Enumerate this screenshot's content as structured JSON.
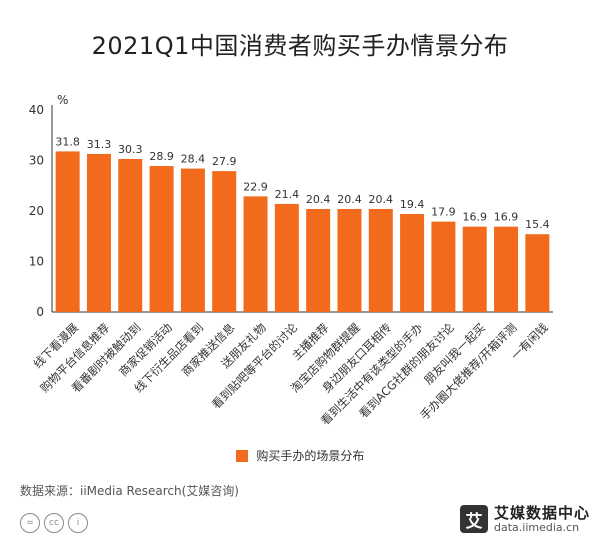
{
  "header": {
    "title": "2021Q1中国消费者购买手办情景分布"
  },
  "chart_data": {
    "type": "bar",
    "title": "2021Q1中国消费者购买手办情景分布",
    "ylabel": "%",
    "ylim": [
      0,
      40
    ],
    "yticks": [
      0,
      10,
      20,
      30,
      40
    ],
    "grid": false,
    "legend_position": "bottom",
    "categories": [
      "线下看漫展",
      "购物平台信息推荐",
      "看番剧时被触动到",
      "商家促销活动",
      "线下衍生品店看到",
      "商家推送信息",
      "送朋友礼物",
      "看到贴吧等平台的讨论",
      "主播推荐",
      "淘宝店购物群提醒",
      "身边朋友口耳相传",
      "看到生活中有该类型的手办",
      "看到ACG社群的朋友讨论",
      "朋友叫我一起买",
      "手办圈大佬推荐/开箱评测",
      "一有闲钱"
    ],
    "series": [
      {
        "name": "购买手办的场景分布",
        "values": [
          31.8,
          31.3,
          30.3,
          28.9,
          28.4,
          27.9,
          22.9,
          21.4,
          20.4,
          20.4,
          20.4,
          19.4,
          17.9,
          16.9,
          16.9,
          15.4
        ]
      }
    ]
  },
  "colors": {
    "bar": "#F26A1B",
    "axis": "#333333",
    "text": "#333333"
  },
  "source": "数据来源：iiMedia Research(艾媒咨询)",
  "license_icons": [
    "=",
    "cc",
    "i"
  ],
  "brand": {
    "name": "艾媒数据中心",
    "url": "data.iimedia.cn",
    "logo_char": "艾"
  }
}
